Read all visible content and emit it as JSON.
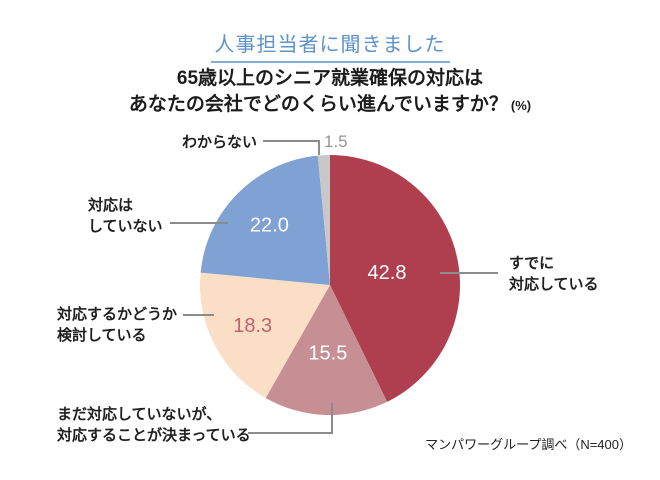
{
  "page": {
    "background_color": "#ffffff"
  },
  "header": {
    "label": "人事担当者に聞きました",
    "text_color": "#5d92cb",
    "underline_color": "#85abd7"
  },
  "title": {
    "line1": "65歳以上のシニア就業確保の対応は",
    "line2": "あなたの会社でどのくらい進んでいますか？",
    "unit": "(%)"
  },
  "chart_data": {
    "type": "pie",
    "title": "65歳以上のシニア就業確保の対応はあなたの会社でどのくらい進んでいますか？",
    "unit": "%",
    "direction": "clockwise",
    "start_angle_deg": 0,
    "legend_position": "callout-labels",
    "slices": [
      {
        "label": "すでに対応している",
        "value": 42.8,
        "value_label": "42.8",
        "color": "#af3f4e",
        "value_color": "#ffffff",
        "label_r": 0.45
      },
      {
        "label": "まだ対応していないが、対応することが決まっている",
        "value": 15.5,
        "value_label": "15.5",
        "color": "#c68f93",
        "value_color": "#ffffff",
        "label_r": 0.52
      },
      {
        "label": "対応するかどうか検討している",
        "value": 18.3,
        "value_label": "18.3",
        "color": "#fadfc6",
        "value_color": "#c4616c",
        "label_r": 0.67
      },
      {
        "label": "対応はしていない",
        "value": 22.0,
        "value_label": "22.0",
        "color": "#7fa1d3",
        "value_color": "#ffffff",
        "label_r": 0.66
      },
      {
        "label": "わからない",
        "value": 1.5,
        "value_label": "1.5",
        "color": "#c8c8c8",
        "value_color": "#969696",
        "label_outside": true
      }
    ]
  },
  "callouts": {
    "dont_know": {
      "lines": [
        "わからない"
      ]
    },
    "no_action": {
      "lines": [
        "対応は",
        "していない"
      ]
    },
    "considering": {
      "lines": [
        "対応するかどうか",
        "検討している"
      ]
    },
    "decided": {
      "lines": [
        "まだ対応していないが、",
        "対応することが決まっている"
      ]
    },
    "already": {
      "lines": [
        "すでに",
        "対応している"
      ]
    }
  },
  "footnote": {
    "text": "マンパワーグループ調べ（N=400）"
  }
}
